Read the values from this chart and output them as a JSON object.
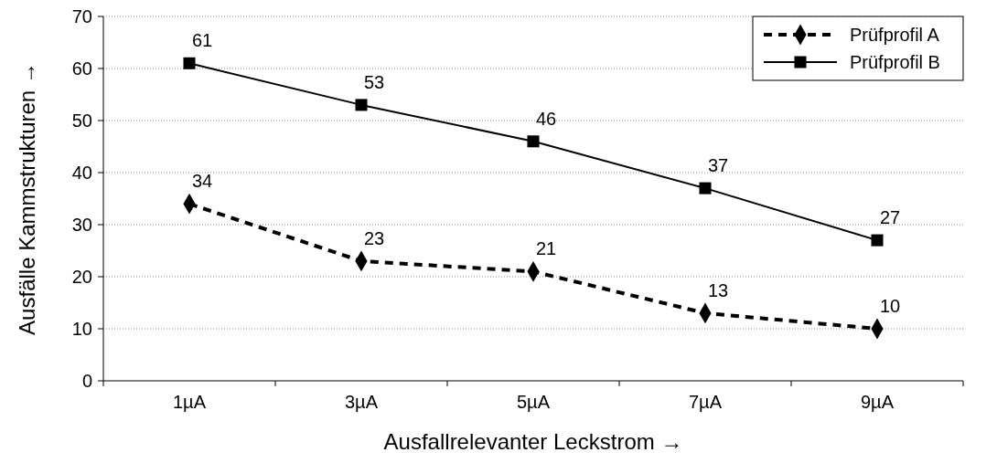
{
  "chart_data": {
    "type": "line",
    "xlabel": "Ausfallrelevanter Leckstrom →",
    "ylabel": "Ausfälle Kammstrukturen →",
    "categories": [
      "1µA",
      "3µA",
      "5µA",
      "7µA",
      "9µA"
    ],
    "series": [
      {
        "name": "Prüfprofil A",
        "color": "#000000",
        "values": [
          34,
          23,
          21,
          13,
          10
        ],
        "marker": "diamond",
        "line_style": "dashed"
      },
      {
        "name": "Prüfprofil B",
        "color": "#000000",
        "values": [
          61,
          53,
          46,
          37,
          27
        ],
        "marker": "square",
        "line_style": "solid"
      }
    ],
    "ylim": [
      0,
      70
    ],
    "yticks": [
      0,
      10,
      20,
      30,
      40,
      50,
      60,
      70
    ],
    "grid": "y",
    "legend": "top right",
    "data_labels": true
  }
}
